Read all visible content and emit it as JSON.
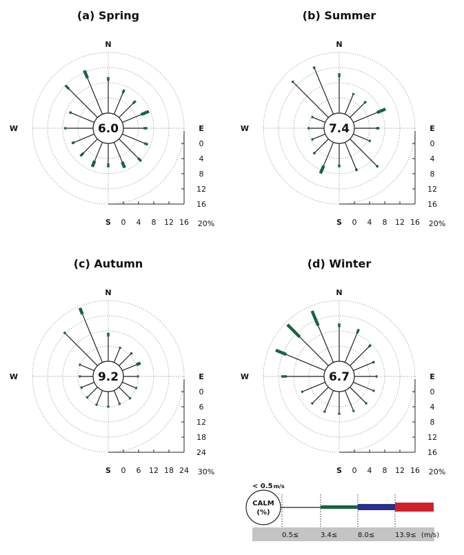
{
  "chart_data": [
    {
      "type": "windrose",
      "title": "(a) Spring",
      "calm_pct": "6.0",
      "directions": {
        "N": "N",
        "E": "E",
        "S": "S",
        "W": "W"
      },
      "radial_ticks": [
        "0",
        "4",
        "8",
        "12",
        "16"
      ],
      "axis_max_label": "20%",
      "rmax": 20,
      "petals": [
        {
          "dir": "N",
          "total": 9.5,
          "green": 1.0
        },
        {
          "dir": "NNE",
          "total": 7.0,
          "green": 1.0
        },
        {
          "dir": "NE",
          "total": 6.2,
          "green": 1.0
        },
        {
          "dir": "ENE",
          "total": 7.6,
          "green": 2.2
        },
        {
          "dir": "E",
          "total": 6.3,
          "green": 1.0
        },
        {
          "dir": "ESE",
          "total": 7.3,
          "green": 1.0
        },
        {
          "dir": "SE",
          "total": 8.3,
          "green": 1.2
        },
        {
          "dir": "SSE",
          "total": 7.3,
          "green": 1.7
        },
        {
          "dir": "S",
          "total": 6.3,
          "green": 1.0
        },
        {
          "dir": "SSW",
          "total": 7.0,
          "green": 1.7
        },
        {
          "dir": "SW",
          "total": 6.4,
          "green": 1.2
        },
        {
          "dir": "WSW",
          "total": 6.4,
          "green": 0.8
        },
        {
          "dir": "W",
          "total": 7.6,
          "green": 0.5
        },
        {
          "dir": "WNW",
          "total": 7.1,
          "green": 0.6
        },
        {
          "dir": "NW",
          "total": 12.0,
          "green": 1.4
        },
        {
          "dir": "NNW",
          "total": 12.5,
          "green": 2.2
        }
      ]
    },
    {
      "type": "windrose",
      "title": "(b) Summer",
      "calm_pct": "7.4",
      "directions": {
        "N": "N",
        "E": "E",
        "S": "S",
        "W": "W"
      },
      "radial_ticks": [
        "0",
        "4",
        "8",
        "12",
        "16"
      ],
      "axis_max_label": "20%",
      "rmax": 20,
      "petals": [
        {
          "dir": "N",
          "total": 10.5,
          "green": 1.0
        },
        {
          "dir": "NNE",
          "total": 6.0,
          "green": 0.4
        },
        {
          "dir": "NE",
          "total": 6.0,
          "green": 0.6
        },
        {
          "dir": "ENE",
          "total": 9.2,
          "green": 2.4
        },
        {
          "dir": "E",
          "total": 6.6,
          "green": 0.9
        },
        {
          "dir": "ESE",
          "total": 5.0,
          "green": 0.4
        },
        {
          "dir": "SE",
          "total": 10.5,
          "green": 0.6
        },
        {
          "dir": "SSE",
          "total": 8.2,
          "green": 0.7
        },
        {
          "dir": "S",
          "total": 6.3,
          "green": 0.7
        },
        {
          "dir": "SSW",
          "total": 8.9,
          "green": 2.2
        },
        {
          "dir": "SW",
          "total": 5.6,
          "green": 0.6
        },
        {
          "dir": "WSW",
          "total": 3.9,
          "green": 0.4
        },
        {
          "dir": "W",
          "total": 4.3,
          "green": 0.3
        },
        {
          "dir": "WNW",
          "total": 3.9,
          "green": 0.3
        },
        {
          "dir": "NW",
          "total": 13.6,
          "green": 0.5
        },
        {
          "dir": "NNW",
          "total": 13.6,
          "green": 0.6
        }
      ]
    },
    {
      "type": "windrose",
      "title": "(c) Autumn",
      "calm_pct": "9.2",
      "directions": {
        "N": "N",
        "E": "E",
        "S": "S",
        "W": "W"
      },
      "radial_ticks": [
        "0",
        "6",
        "12",
        "18",
        "24"
      ],
      "axis_max_label": "30%",
      "rmax": 30,
      "petals": [
        {
          "dir": "N",
          "total": 11.3,
          "green": 1.5
        },
        {
          "dir": "NNE",
          "total": 6.6,
          "green": 0.5
        },
        {
          "dir": "NE",
          "total": 7.3,
          "green": 0.8
        },
        {
          "dir": "ENE",
          "total": 7.8,
          "green": 1.7
        },
        {
          "dir": "E",
          "total": 6.1,
          "green": 0.4
        },
        {
          "dir": "ESE",
          "total": 6.3,
          "green": 0.4
        },
        {
          "dir": "SE",
          "total": 6.6,
          "green": 0.4
        },
        {
          "dir": "SSE",
          "total": 6.1,
          "green": 0.4
        },
        {
          "dir": "S",
          "total": 6.3,
          "green": 0.5
        },
        {
          "dir": "SSW",
          "total": 6.5,
          "green": 0.7
        },
        {
          "dir": "SW",
          "total": 6.1,
          "green": 0.4
        },
        {
          "dir": "WSW",
          "total": 5.8,
          "green": 0.3
        },
        {
          "dir": "W",
          "total": 5.6,
          "green": 0.3
        },
        {
          "dir": "WNW",
          "total": 6.5,
          "green": 0.4
        },
        {
          "dir": "NW",
          "total": 18.8,
          "green": 0.5
        },
        {
          "dir": "NNW",
          "total": 23.3,
          "green": 2.6
        }
      ]
    },
    {
      "type": "windrose",
      "title": "(d) Winter",
      "calm_pct": "6.7",
      "directions": {
        "N": "N",
        "E": "E",
        "S": "S",
        "W": "W"
      },
      "radial_ticks": [
        "0",
        "4",
        "8",
        "12",
        "16"
      ],
      "axis_max_label": "20%",
      "rmax": 20,
      "petals": [
        {
          "dir": "N",
          "total": 10.0,
          "green": 1.0
        },
        {
          "dir": "NNE",
          "total": 9.5,
          "green": 1.2
        },
        {
          "dir": "NE",
          "total": 7.8,
          "green": 0.8
        },
        {
          "dir": "ENE",
          "total": 6.1,
          "green": 0.6
        },
        {
          "dir": "E",
          "total": 6.1,
          "green": 0.4
        },
        {
          "dir": "ESE",
          "total": 6.1,
          "green": 0.4
        },
        {
          "dir": "SE",
          "total": 6.3,
          "green": 0.4
        },
        {
          "dir": "SSE",
          "total": 6.1,
          "green": 0.4
        },
        {
          "dir": "S",
          "total": 6.1,
          "green": 0.4
        },
        {
          "dir": "SSW",
          "total": 6.3,
          "green": 0.4
        },
        {
          "dir": "SW",
          "total": 6.3,
          "green": 0.4
        },
        {
          "dir": "WSW",
          "total": 6.8,
          "green": 0.4
        },
        {
          "dir": "W",
          "total": 11.3,
          "green": 1.5
        },
        {
          "dir": "WNW",
          "total": 14.1,
          "green": 3.0
        },
        {
          "dir": "NW",
          "total": 15.3,
          "green": 4.6
        },
        {
          "dir": "NNW",
          "total": 14.7,
          "green": 4.2
        }
      ]
    }
  ],
  "legend": {
    "calm_threshold": "< 0.5",
    "calm_unit": "m/s",
    "calm_label": "CALM",
    "calm_pct_label": "(%)",
    "bins": [
      "0.5≤",
      "3.4≤",
      "8.0≤",
      "13.9≤"
    ],
    "unit": "(m/s)",
    "colors": [
      "#1f1f1f",
      "#17653f",
      "#2a2f8f",
      "#d11f2c"
    ]
  },
  "colors": {
    "petal_fill": "#17653f",
    "petal_line": "#1f1f1f",
    "grid": "#9a9a9a",
    "legend_bar": "#c4c4c4"
  }
}
